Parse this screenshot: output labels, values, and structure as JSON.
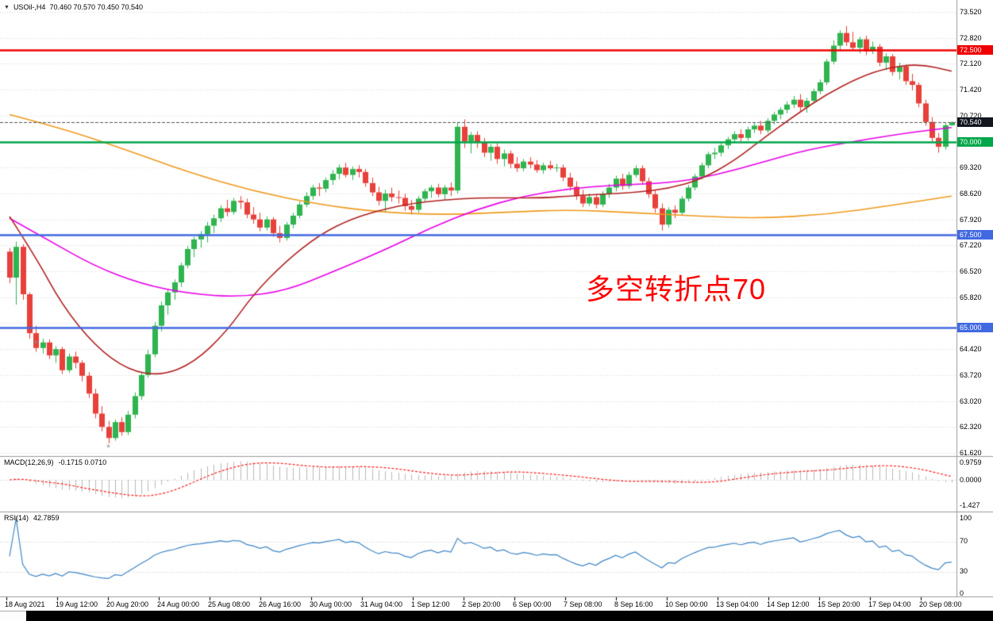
{
  "chart_data": {
    "type": "candlestick",
    "symbol": "USOil-",
    "timeframe": "H4",
    "header": {
      "expander": "▼",
      "title": "USOil-,H4",
      "ohlc": "70.460 70.570 70.450 70.540"
    },
    "annotation": {
      "text": "多空转折点70",
      "color": "#FF0000"
    },
    "bull_color": "#2FB450",
    "bear_color": "#E8403A",
    "grid_color": "#D9D9D9",
    "separator_color": "#9A9A9A",
    "price_axis": {
      "min": 61.62,
      "max": 73.52,
      "step": 0.7,
      "gridline_prices": [
        73.52,
        72.82,
        72.12,
        71.42,
        70.72,
        70.02,
        69.32,
        68.62,
        67.92,
        67.22,
        66.52,
        65.82,
        65.12,
        64.42,
        63.72,
        63.02,
        62.32,
        61.62
      ],
      "labels": [
        {
          "price": 73.52,
          "text": "73.520"
        },
        {
          "price": 72.82,
          "text": "72.820"
        },
        {
          "price": 72.12,
          "text": "72.120"
        },
        {
          "price": 71.42,
          "text": "71.420"
        },
        {
          "price": 70.72,
          "text": "70.720"
        },
        {
          "price": 69.32,
          "text": "69.320"
        },
        {
          "price": 68.62,
          "text": "68.620"
        },
        {
          "price": 67.92,
          "text": "67.920"
        },
        {
          "price": 67.22,
          "text": "67.220"
        },
        {
          "price": 66.52,
          "text": "66.520"
        },
        {
          "price": 65.82,
          "text": "65.820"
        },
        {
          "price": 64.42,
          "text": "64.420"
        },
        {
          "price": 63.72,
          "text": "63.720"
        },
        {
          "price": 63.02,
          "text": "63.020"
        },
        {
          "price": 62.32,
          "text": "62.320"
        },
        {
          "price": 61.62,
          "text": "61.620"
        }
      ]
    },
    "levels": [
      {
        "price": 72.5,
        "label": "72.500",
        "color": "#F00000"
      },
      {
        "price": 70.0,
        "label": "70.000",
        "color": "#00A64A"
      },
      {
        "price": 67.5,
        "label": "67.500",
        "color": "#4169E1"
      },
      {
        "price": 65.0,
        "label": "65.000",
        "color": "#4169E1"
      }
    ],
    "current_price": {
      "value": 70.54,
      "label": "70.540",
      "badge_color": "#12161F",
      "line_color": "#555555"
    },
    "time_axis": {
      "labels": [
        "18 Aug 2021",
        "19 Aug 12:00",
        "20 Aug 20:00",
        "24 Aug 00:00",
        "25 Aug 08:00",
        "26 Aug 16:00",
        "30 Aug 00:00",
        "31 Aug 04:00",
        "1 Sep 12:00",
        "2 Sep 20:00",
        "6 Sep 00:00",
        "7 Sep 08:00",
        "8 Sep 16:00",
        "10 Sep 00:00",
        "13 Sep 04:00",
        "14 Sep 12:00",
        "15 Sep 20:00",
        "17 Sep 04:00",
        "20 Sep 08:00"
      ]
    },
    "candles": [
      [
        67.05,
        67.15,
        66.2,
        66.35
      ],
      [
        66.35,
        67.32,
        65.62,
        67.18
      ],
      [
        67.18,
        67.25,
        65.75,
        65.9
      ],
      [
        65.9,
        65.95,
        64.7,
        64.85
      ],
      [
        64.85,
        65.05,
        64.35,
        64.45
      ],
      [
        64.45,
        64.7,
        64.3,
        64.6
      ],
      [
        64.6,
        64.68,
        64.15,
        64.25
      ],
      [
        64.25,
        64.5,
        64.05,
        64.42
      ],
      [
        64.42,
        64.48,
        63.75,
        63.85
      ],
      [
        63.85,
        64.3,
        63.78,
        64.22
      ],
      [
        64.22,
        64.35,
        63.9,
        64.05
      ],
      [
        64.05,
        64.12,
        63.55,
        63.7
      ],
      [
        63.7,
        63.8,
        63.1,
        63.22
      ],
      [
        63.22,
        63.35,
        62.55,
        62.68
      ],
      [
        62.68,
        62.88,
        62.2,
        62.32
      ],
      [
        62.32,
        62.48,
        61.88,
        62.02
      ],
      [
        62.02,
        62.52,
        61.95,
        62.45
      ],
      [
        62.45,
        62.58,
        62.08,
        62.18
      ],
      [
        62.18,
        62.75,
        62.1,
        62.65
      ],
      [
        62.65,
        63.25,
        62.55,
        63.15
      ],
      [
        63.15,
        63.8,
        63.05,
        63.72
      ],
      [
        63.72,
        64.4,
        63.65,
        64.28
      ],
      [
        64.28,
        65.15,
        64.2,
        65.05
      ],
      [
        65.05,
        65.7,
        64.9,
        65.6
      ],
      [
        65.6,
        66.05,
        65.35,
        65.95
      ],
      [
        65.95,
        66.3,
        65.75,
        66.22
      ],
      [
        66.22,
        66.75,
        66.1,
        66.68
      ],
      [
        66.68,
        67.2,
        66.6,
        67.12
      ],
      [
        67.12,
        67.45,
        66.9,
        67.38
      ],
      [
        67.38,
        67.6,
        67.15,
        67.52
      ],
      [
        67.52,
        67.85,
        67.3,
        67.75
      ],
      [
        67.75,
        68.05,
        67.55,
        67.95
      ],
      [
        67.95,
        68.3,
        67.85,
        68.22
      ],
      [
        68.22,
        68.45,
        68.0,
        68.12
      ],
      [
        68.12,
        68.5,
        68.05,
        68.42
      ],
      [
        68.42,
        68.55,
        68.2,
        68.38
      ],
      [
        68.38,
        68.48,
        67.95,
        68.05
      ],
      [
        68.05,
        68.25,
        67.8,
        67.92
      ],
      [
        67.92,
        68.1,
        67.6,
        67.7
      ],
      [
        67.7,
        68.0,
        67.62,
        67.92
      ],
      [
        67.92,
        67.98,
        67.45,
        67.55
      ],
      [
        67.55,
        67.75,
        67.3,
        67.42
      ],
      [
        67.42,
        67.85,
        67.35,
        67.78
      ],
      [
        67.78,
        68.1,
        67.68,
        68.02
      ],
      [
        68.02,
        68.4,
        67.95,
        68.32
      ],
      [
        68.32,
        68.65,
        68.25,
        68.55
      ],
      [
        68.55,
        68.85,
        68.45,
        68.78
      ],
      [
        68.78,
        68.9,
        68.55,
        68.75
      ],
      [
        68.75,
        69.05,
        68.65,
        68.98
      ],
      [
        68.98,
        69.25,
        68.85,
        69.15
      ],
      [
        69.15,
        69.4,
        69.0,
        69.32
      ],
      [
        69.32,
        69.45,
        69.05,
        69.12
      ],
      [
        69.12,
        69.35,
        68.98,
        69.28
      ],
      [
        69.28,
        69.38,
        69.05,
        69.2
      ],
      [
        69.2,
        69.28,
        68.8,
        68.9
      ],
      [
        68.9,
        69.05,
        68.55,
        68.65
      ],
      [
        68.65,
        68.8,
        68.3,
        68.42
      ],
      [
        68.42,
        68.72,
        68.1,
        68.62
      ],
      [
        68.62,
        68.78,
        68.4,
        68.52
      ],
      [
        68.52,
        68.7,
        68.35,
        68.5
      ],
      [
        68.5,
        68.62,
        68.15,
        68.28
      ],
      [
        68.28,
        68.45,
        68.05,
        68.18
      ],
      [
        68.18,
        68.55,
        68.1,
        68.48
      ],
      [
        68.48,
        68.75,
        68.4,
        68.68
      ],
      [
        68.68,
        68.85,
        68.5,
        68.78
      ],
      [
        68.78,
        68.88,
        68.52,
        68.6
      ],
      [
        68.6,
        68.85,
        68.45,
        68.78
      ],
      [
        68.78,
        68.92,
        68.55,
        68.7
      ],
      [
        68.7,
        70.55,
        68.62,
        70.42
      ],
      [
        70.42,
        70.62,
        69.85,
        70.02
      ],
      [
        70.02,
        70.28,
        69.7,
        70.2
      ],
      [
        70.2,
        70.3,
        69.85,
        70.0
      ],
      [
        70.0,
        70.12,
        69.6,
        69.72
      ],
      [
        69.72,
        69.95,
        69.5,
        69.88
      ],
      [
        69.88,
        69.98,
        69.42,
        69.55
      ],
      [
        69.55,
        69.8,
        69.35,
        69.7
      ],
      [
        69.7,
        69.78,
        69.3,
        69.42
      ],
      [
        69.42,
        69.6,
        69.2,
        69.3
      ],
      [
        69.3,
        69.55,
        69.22,
        69.48
      ],
      [
        69.48,
        69.6,
        69.3,
        69.4
      ],
      [
        69.4,
        69.52,
        69.18,
        69.25
      ],
      [
        69.25,
        69.45,
        69.15,
        69.38
      ],
      [
        69.38,
        69.5,
        69.25,
        69.3
      ],
      [
        69.3,
        69.42,
        69.2,
        69.32
      ],
      [
        69.32,
        69.4,
        68.95,
        69.05
      ],
      [
        69.05,
        69.18,
        68.7,
        68.8
      ],
      [
        68.8,
        68.95,
        68.45,
        68.55
      ],
      [
        68.55,
        68.72,
        68.25,
        68.35
      ],
      [
        68.35,
        68.62,
        68.28,
        68.52
      ],
      [
        68.52,
        68.6,
        68.22,
        68.32
      ],
      [
        68.32,
        68.68,
        68.25,
        68.6
      ],
      [
        68.6,
        68.88,
        68.5,
        68.78
      ],
      [
        68.78,
        69.1,
        68.68,
        69.02
      ],
      [
        69.02,
        69.15,
        68.72,
        68.82
      ],
      [
        68.82,
        69.2,
        68.75,
        69.12
      ],
      [
        69.12,
        69.38,
        69.05,
        69.3
      ],
      [
        69.3,
        69.38,
        68.85,
        68.95
      ],
      [
        68.95,
        69.05,
        68.5,
        68.6
      ],
      [
        68.6,
        68.72,
        68.1,
        68.22
      ],
      [
        68.22,
        68.35,
        67.62,
        67.78
      ],
      [
        67.78,
        68.25,
        67.7,
        68.18
      ],
      [
        68.18,
        68.3,
        67.95,
        68.1
      ],
      [
        68.1,
        68.55,
        68.02,
        68.48
      ],
      [
        68.48,
        68.85,
        68.4,
        68.78
      ],
      [
        68.78,
        69.15,
        68.7,
        69.08
      ],
      [
        69.08,
        69.45,
        69.0,
        69.38
      ],
      [
        69.38,
        69.75,
        69.3,
        69.68
      ],
      [
        69.68,
        69.85,
        69.55,
        69.72
      ],
      [
        69.72,
        69.98,
        69.62,
        69.92
      ],
      [
        69.92,
        70.15,
        69.82,
        70.08
      ],
      [
        70.08,
        70.3,
        69.98,
        70.22
      ],
      [
        70.22,
        70.35,
        70.02,
        70.12
      ],
      [
        70.12,
        70.42,
        70.05,
        70.35
      ],
      [
        70.35,
        70.52,
        70.25,
        70.45
      ],
      [
        70.45,
        70.58,
        70.22,
        70.32
      ],
      [
        70.32,
        70.65,
        70.25,
        70.58
      ],
      [
        70.58,
        70.82,
        70.48,
        70.75
      ],
      [
        70.75,
        70.95,
        70.62,
        70.88
      ],
      [
        70.88,
        71.1,
        70.78,
        71.02
      ],
      [
        71.02,
        71.25,
        70.92,
        71.15
      ],
      [
        71.15,
        71.3,
        70.85,
        70.95
      ],
      [
        70.95,
        71.2,
        70.8,
        71.12
      ],
      [
        71.12,
        71.45,
        71.05,
        71.38
      ],
      [
        71.38,
        71.7,
        71.3,
        71.62
      ],
      [
        71.62,
        72.25,
        71.55,
        72.18
      ],
      [
        72.18,
        72.75,
        72.1,
        72.61
      ],
      [
        72.61,
        73.02,
        72.45,
        72.95
      ],
      [
        72.95,
        73.14,
        72.6,
        72.7
      ],
      [
        72.7,
        72.98,
        72.48,
        72.55
      ],
      [
        72.55,
        72.85,
        72.4,
        72.78
      ],
      [
        72.78,
        72.88,
        72.35,
        72.45
      ],
      [
        72.45,
        72.72,
        72.38,
        72.58
      ],
      [
        72.58,
        72.65,
        72.05,
        72.15
      ],
      [
        72.15,
        72.4,
        71.95,
        72.32
      ],
      [
        72.32,
        72.38,
        71.8,
        71.9
      ],
      [
        71.9,
        72.15,
        71.7,
        72.05
      ],
      [
        72.05,
        72.1,
        71.55,
        71.65
      ],
      [
        71.65,
        71.85,
        71.4,
        71.55
      ],
      [
        71.55,
        71.62,
        70.95,
        71.05
      ],
      [
        71.05,
        71.15,
        70.45,
        70.55
      ],
      [
        70.55,
        70.68,
        70.02,
        70.12
      ],
      [
        70.12,
        70.25,
        69.72,
        69.88
      ],
      [
        69.88,
        70.52,
        69.8,
        70.46
      ],
      [
        70.46,
        70.57,
        70.45,
        70.54
      ]
    ],
    "moving_averages": [
      {
        "name": "ma-slow-orange",
        "color": "#EF9A1D",
        "points": [
          [
            0,
            70.75
          ],
          [
            8,
            70.38
          ],
          [
            18,
            69.78
          ],
          [
            27,
            69.2
          ],
          [
            37,
            68.68
          ],
          [
            47,
            68.32
          ],
          [
            56,
            68.12
          ],
          [
            66,
            68.04
          ],
          [
            76,
            68.12
          ],
          [
            85,
            68.18
          ],
          [
            95,
            68.1
          ],
          [
            105,
            68.0
          ],
          [
            114,
            67.95
          ],
          [
            124,
            68.05
          ],
          [
            134,
            68.3
          ],
          [
            143,
            68.55
          ]
        ]
      },
      {
        "name": "ma-mid-magenta",
        "color": "#E800E8",
        "points": [
          [
            0,
            67.95
          ],
          [
            6,
            67.35
          ],
          [
            13,
            66.65
          ],
          [
            20,
            66.18
          ],
          [
            27,
            65.92
          ],
          [
            35,
            65.82
          ],
          [
            42,
            66.0
          ],
          [
            49,
            66.5
          ],
          [
            57,
            67.1
          ],
          [
            64,
            67.7
          ],
          [
            71,
            68.2
          ],
          [
            78,
            68.55
          ],
          [
            85,
            68.75
          ],
          [
            92,
            68.85
          ],
          [
            100,
            68.9
          ],
          [
            107,
            69.1
          ],
          [
            114,
            69.45
          ],
          [
            121,
            69.8
          ],
          [
            129,
            70.05
          ],
          [
            136,
            70.25
          ],
          [
            143,
            70.4
          ]
        ]
      },
      {
        "name": "ma-swing-darkred",
        "color": "#B22222",
        "points": [
          [
            0,
            68.0
          ],
          [
            4,
            66.9
          ],
          [
            8,
            65.6
          ],
          [
            13,
            64.5
          ],
          [
            18,
            63.85
          ],
          [
            23,
            63.7
          ],
          [
            28,
            64.05
          ],
          [
            33,
            64.9
          ],
          [
            37,
            65.9
          ],
          [
            42,
            66.8
          ],
          [
            47,
            67.5
          ],
          [
            52,
            67.95
          ],
          [
            57,
            68.2
          ],
          [
            61,
            68.35
          ],
          [
            66,
            68.45
          ],
          [
            71,
            68.5
          ],
          [
            76,
            68.5
          ],
          [
            81,
            68.5
          ],
          [
            85,
            68.55
          ],
          [
            90,
            68.6
          ],
          [
            95,
            68.65
          ],
          [
            100,
            68.75
          ],
          [
            105,
            69.0
          ],
          [
            110,
            69.5
          ],
          [
            114,
            70.05
          ],
          [
            119,
            70.7
          ],
          [
            124,
            71.3
          ],
          [
            129,
            71.75
          ],
          [
            133,
            72.0
          ],
          [
            138,
            72.12
          ],
          [
            143,
            71.92
          ]
        ]
      }
    ],
    "marks": [
      {
        "index": 4,
        "price": 64.58,
        "glyph": "*"
      },
      {
        "index": 15,
        "price": 61.78,
        "glyph": "*"
      }
    ],
    "macd": {
      "label": "MACD(12,26,9)",
      "values_text": "-0.1715 0.0710",
      "axis": [
        {
          "text": "0.9759",
          "value": 0.9759
        },
        {
          "text": "0.0000",
          "value": 0
        },
        {
          "text": "-1.427",
          "value": -1.427
        }
      ],
      "hist_color": "#B9B9B9",
      "signal_color": "#FF2020",
      "fast": 12,
      "slow": 26,
      "signal": 9
    },
    "rsi": {
      "label": "RSI(14)",
      "value_text": "42.7859",
      "axis": [
        {
          "text": "100",
          "value": 100
        },
        {
          "text": "70",
          "value": 70
        },
        {
          "text": "30",
          "value": 30
        },
        {
          "text": "0",
          "value": 0
        }
      ],
      "levels": [
        30,
        70
      ],
      "line_color": "#3E86C6",
      "period": 14
    }
  },
  "window": {
    "scrollbar_color": "#000000"
  }
}
